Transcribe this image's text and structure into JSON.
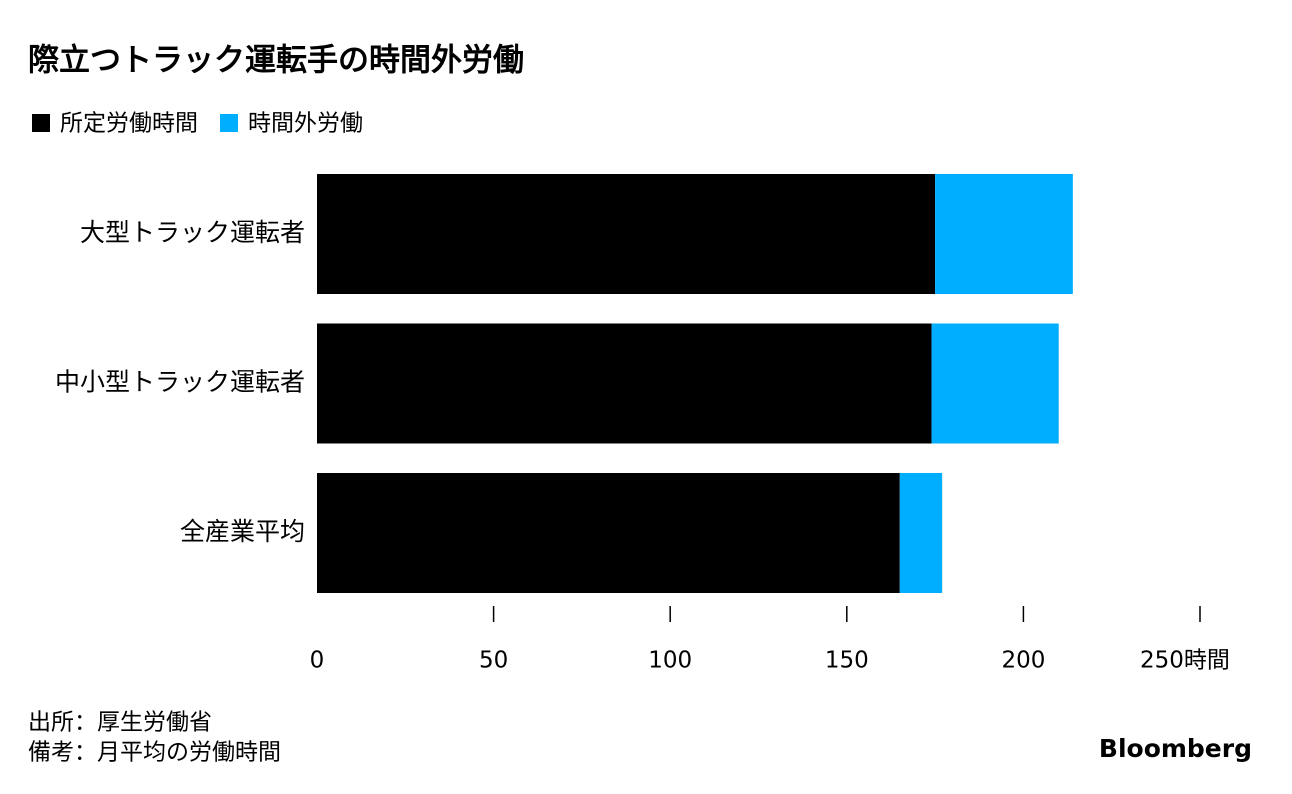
{
  "chart_data": {
    "type": "bar",
    "orientation": "horizontal",
    "stacked": true,
    "title": "際立つトラック運転手の時間外労働",
    "categories": [
      "大型トラック運転者",
      "中小型トラック運転者",
      "全産業平均"
    ],
    "series": [
      {
        "name": "所定労働時間",
        "color": "#000000",
        "values": [
          175,
          174,
          165
        ]
      },
      {
        "name": "時間外労働",
        "color": "#00aeff",
        "values": [
          39,
          36,
          12
        ]
      }
    ],
    "xlim": [
      0,
      250
    ],
    "xticks": [
      0,
      50,
      100,
      150,
      200,
      {
        "value": 250,
        "label": "250時間"
      }
    ],
    "grid": false,
    "source": "出所：厚生労働省",
    "note": "備考：月平均の労働時間"
  },
  "logo": "Bloomberg"
}
